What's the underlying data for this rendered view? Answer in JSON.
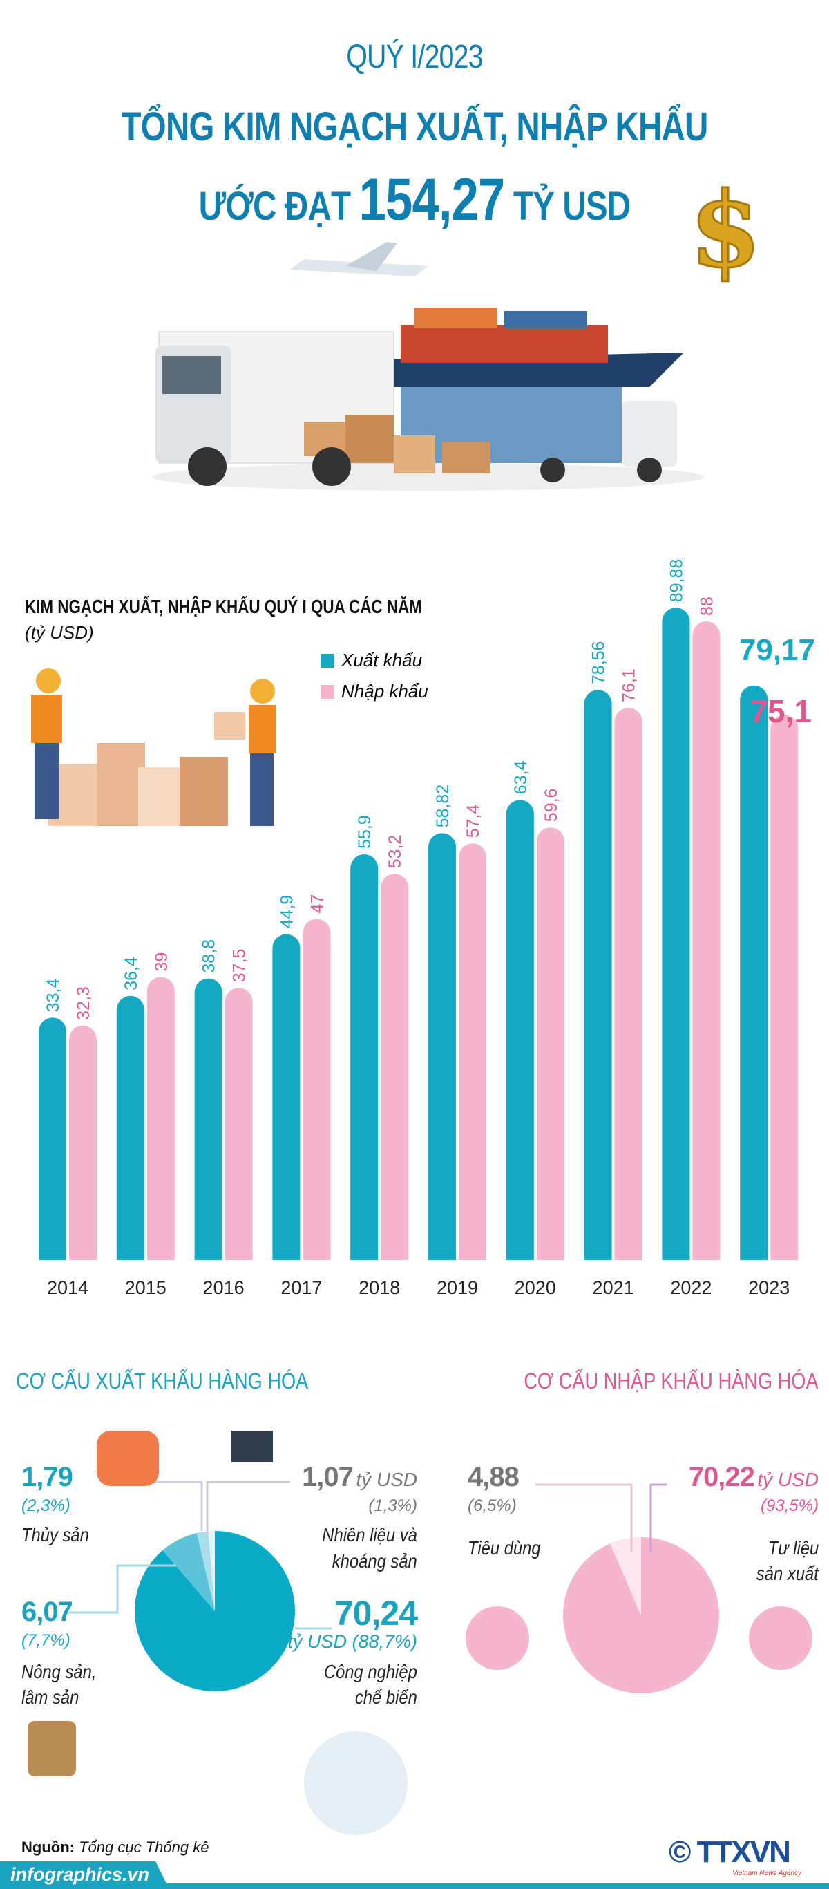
{
  "header": {
    "period": "QUÝ I/2023",
    "title_line1": "TỔNG KIM NGẠCH XUẤT, NHẬP KHẨU",
    "title_prefix": "ƯỚC ĐẠT",
    "total_value": "154,27",
    "title_suffix": "TỶ USD"
  },
  "colors": {
    "title": "#0e7fb0",
    "export": "#13a9c4",
    "import": "#f5b5cf",
    "import_text": "#e0578f"
  },
  "chart_data": {
    "type": "bar",
    "title": "KIM NGẠCH XUẤT, NHẬP KHẨU QUÝ I QUA CÁC NĂM",
    "ylabel": "(tỷ USD)",
    "legend_position": "top-left",
    "grid": false,
    "ylim": [
      0,
      92
    ],
    "categories": [
      "2014",
      "2015",
      "2016",
      "2017",
      "2018",
      "2019",
      "2020",
      "2021",
      "2022",
      "2023"
    ],
    "series": [
      {
        "name": "Xuất khẩu",
        "values": [
          33.4,
          36.4,
          38.8,
          44.9,
          55.9,
          58.82,
          63.4,
          78.56,
          89.88,
          79.17
        ],
        "labels": [
          "33,4",
          "36,4",
          "38,8",
          "44,9",
          "55,9",
          "58,82",
          "63,4",
          "78,56",
          "89,88",
          "79,17"
        ]
      },
      {
        "name": "Nhập khẩu",
        "values": [
          32.3,
          39,
          37.5,
          47,
          53.2,
          57.4,
          59.6,
          76.1,
          88,
          75.1
        ],
        "labels": [
          "32,3",
          "39",
          "37,5",
          "47",
          "53,2",
          "57,4",
          "59,6",
          "76,1",
          "88",
          "75,1"
        ]
      }
    ]
  },
  "export_structure": {
    "title": "CƠ CẤU XUẤT KHẨU HÀNG HÓA",
    "items": [
      {
        "value": "70,24",
        "unit_pct": "tỷ USD (88,7%)",
        "label1": "Công nghiệp",
        "label2": "chế biến",
        "pct": 88.7
      },
      {
        "value": "6,07",
        "pct_text": "(7,7%)",
        "label1": "Nông sản,",
        "label2": "lâm sản",
        "pct": 7.7
      },
      {
        "value": "1,79",
        "pct_text": "(2,3%)",
        "label1": "Thủy sản",
        "pct": 2.3
      },
      {
        "value": "1,07",
        "unit": "tỷ USD",
        "pct_text": "(1,3%)",
        "label1": "Nhiên liệu và",
        "label2": "khoáng sản",
        "pct": 1.3
      }
    ]
  },
  "import_structure": {
    "title": "CƠ CẤU NHẬP KHẨU HÀNG HÓA",
    "items": [
      {
        "value": "70,22",
        "unit": "tỷ USD",
        "pct_text": "(93,5%)",
        "label1": "Tư liệu",
        "label2": "sản xuất",
        "pct": 93.5
      },
      {
        "value": "4,88",
        "pct_text": "(6,5%)",
        "label1": "Tiêu dùng",
        "pct": 6.5
      }
    ]
  },
  "footer": {
    "source_label": "Nguồn:",
    "source": "Tổng cục Thống kê",
    "site": "infographics.vn",
    "logo": "TTXVN",
    "logo_sub": "Vietnam News Agency"
  }
}
